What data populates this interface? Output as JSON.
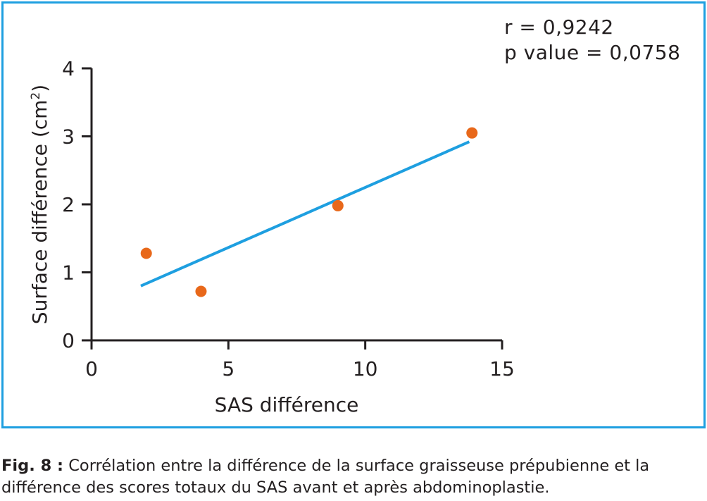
{
  "chart_data": {
    "type": "scatter",
    "xlabel": "SAS différence",
    "ylabel_main": "Surface différence (cm",
    "ylabel_sup": "2",
    "ylabel_close": ")",
    "xlim": [
      0,
      15
    ],
    "ylim": [
      0,
      4
    ],
    "x_ticks": [
      0,
      5,
      10,
      15
    ],
    "y_ticks": [
      0,
      1,
      2,
      3,
      4
    ],
    "grid": false,
    "points": [
      {
        "x": 2,
        "y": 1.28
      },
      {
        "x": 4,
        "y": 0.72
      },
      {
        "x": 9,
        "y": 1.98
      },
      {
        "x": 13.9,
        "y": 3.05
      }
    ],
    "regression_line": {
      "x": [
        1.8,
        13.8
      ],
      "y": [
        0.8,
        2.92
      ]
    },
    "colors": {
      "points": "#e8681a",
      "line": "#1e9fe0",
      "frame": "#1e9fe0",
      "axis": "#231f20"
    }
  },
  "stats": {
    "r": "r = 0,9242",
    "p": "p value = 0,0758"
  },
  "caption": {
    "label": "Fig. 8 :",
    "text": " Corrélation entre la différence de la surface graisseuse prépubienne et la différence des scores totaux du SAS avant et après abdominoplastie."
  }
}
